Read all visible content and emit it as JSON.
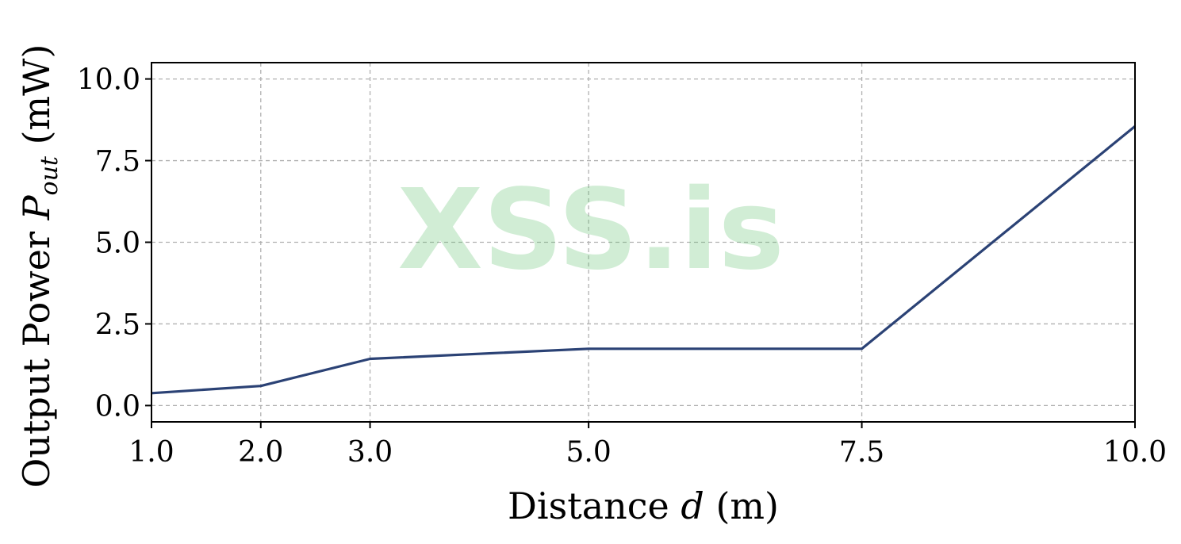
{
  "chart_data": {
    "type": "line",
    "x": [
      1.0,
      2.0,
      3.0,
      5.0,
      7.5,
      10.0
    ],
    "series": [
      {
        "values": [
          0.38,
          0.6,
          1.43,
          1.74,
          1.74,
          8.55
        ],
        "color": "#2b4275"
      }
    ],
    "xlabel": "Distance d (m)",
    "ylabel": "Output Power P_out (mW)",
    "ylabel_parts": {
      "before": "Output Power ",
      "symbol": "P",
      "subscript": "out",
      "after": " (mW)"
    },
    "xlabel_parts": {
      "before": "Distance ",
      "symbol": "d",
      "after": " (m)"
    },
    "xlim": [
      1.0,
      10.0
    ],
    "ylim": [
      -0.5,
      10.5
    ],
    "xticks": [
      1.0,
      2.0,
      3.0,
      5.0,
      7.5,
      10.0
    ],
    "xtick_labels": [
      "1.0",
      "2.0",
      "3.0",
      "5.0",
      "7.5",
      "10.0"
    ],
    "yticks": [
      0.0,
      2.5,
      5.0,
      7.5,
      10.0
    ],
    "ytick_labels": [
      "0.0",
      "2.5",
      "5.0",
      "7.5",
      "10.0"
    ],
    "grid": true,
    "watermark": "XSS.is",
    "colors": {
      "line": "#2b4275",
      "grid": "#b0b0b0",
      "watermark": "#5cbf6b"
    }
  }
}
